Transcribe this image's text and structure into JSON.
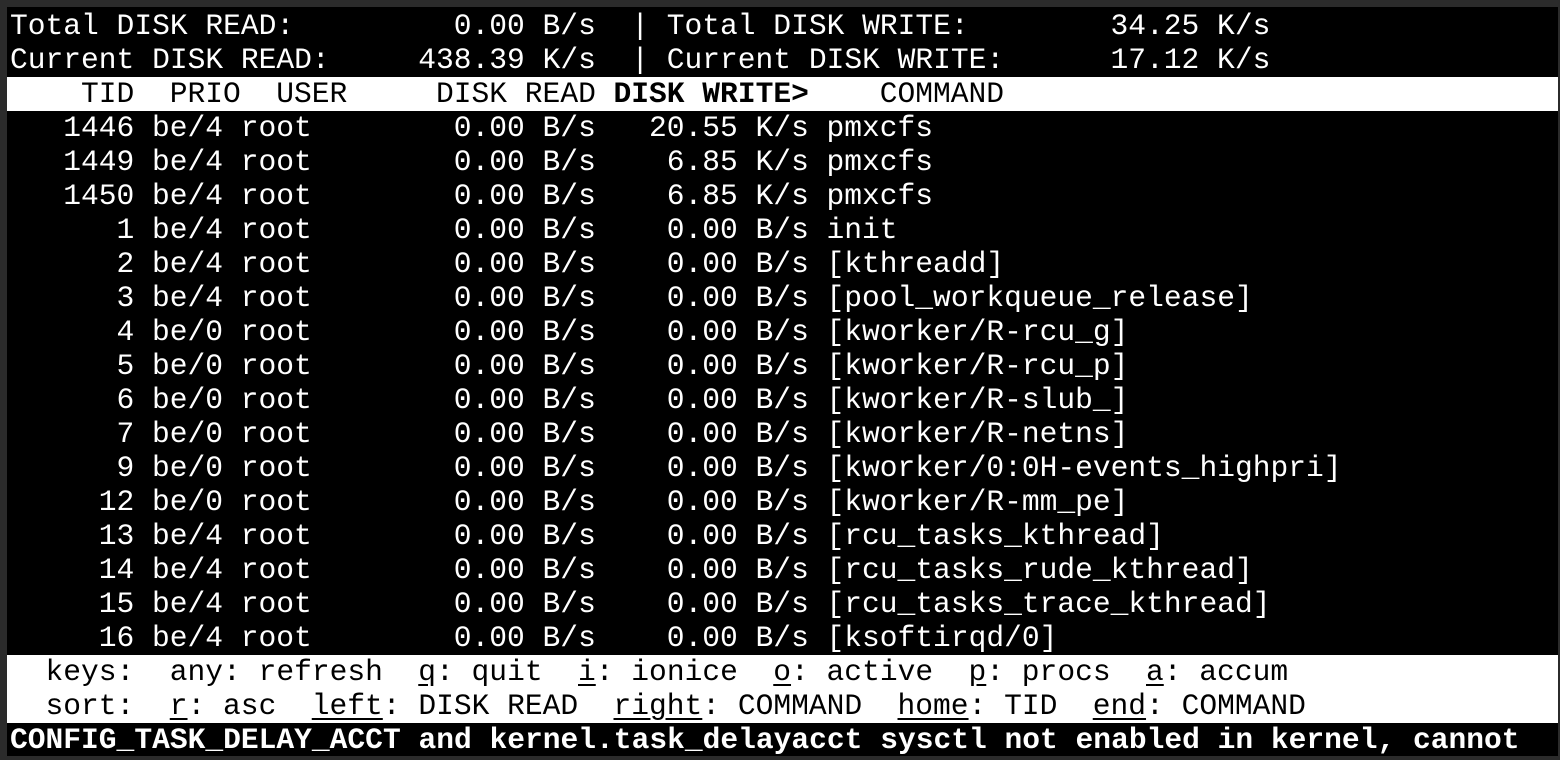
{
  "summary": {
    "total_read_label": "Total DISK READ:",
    "total_read": "0.00 B/s",
    "total_write_label": "Total DISK WRITE:",
    "total_write": "34.25 K/s",
    "current_read_label": "Current DISK READ:",
    "current_read": "438.39 K/s",
    "current_write_label": "Current DISK WRITE:",
    "current_write": "17.12 K/s",
    "separator": "|"
  },
  "columns": [
    "TID",
    "PRIO",
    "USER",
    "DISK READ",
    "DISK WRITE>",
    "COMMAND"
  ],
  "sorted_column": "DISK WRITE>",
  "rows": [
    {
      "tid": "1446",
      "prio": "be/4",
      "user": "root",
      "read": "0.00 B/s",
      "write": "20.55 K/s",
      "command": "pmxcfs"
    },
    {
      "tid": "1449",
      "prio": "be/4",
      "user": "root",
      "read": "0.00 B/s",
      "write": "6.85 K/s",
      "command": "pmxcfs"
    },
    {
      "tid": "1450",
      "prio": "be/4",
      "user": "root",
      "read": "0.00 B/s",
      "write": "6.85 K/s",
      "command": "pmxcfs"
    },
    {
      "tid": "1",
      "prio": "be/4",
      "user": "root",
      "read": "0.00 B/s",
      "write": "0.00 B/s",
      "command": "init"
    },
    {
      "tid": "2",
      "prio": "be/4",
      "user": "root",
      "read": "0.00 B/s",
      "write": "0.00 B/s",
      "command": "[kthreadd]"
    },
    {
      "tid": "3",
      "prio": "be/4",
      "user": "root",
      "read": "0.00 B/s",
      "write": "0.00 B/s",
      "command": "[pool_workqueue_release]"
    },
    {
      "tid": "4",
      "prio": "be/0",
      "user": "root",
      "read": "0.00 B/s",
      "write": "0.00 B/s",
      "command": "[kworker/R-rcu_g]"
    },
    {
      "tid": "5",
      "prio": "be/0",
      "user": "root",
      "read": "0.00 B/s",
      "write": "0.00 B/s",
      "command": "[kworker/R-rcu_p]"
    },
    {
      "tid": "6",
      "prio": "be/0",
      "user": "root",
      "read": "0.00 B/s",
      "write": "0.00 B/s",
      "command": "[kworker/R-slub_]"
    },
    {
      "tid": "7",
      "prio": "be/0",
      "user": "root",
      "read": "0.00 B/s",
      "write": "0.00 B/s",
      "command": "[kworker/R-netns]"
    },
    {
      "tid": "9",
      "prio": "be/0",
      "user": "root",
      "read": "0.00 B/s",
      "write": "0.00 B/s",
      "command": "[kworker/0:0H-events_highpri]"
    },
    {
      "tid": "12",
      "prio": "be/0",
      "user": "root",
      "read": "0.00 B/s",
      "write": "0.00 B/s",
      "command": "[kworker/R-mm_pe]"
    },
    {
      "tid": "13",
      "prio": "be/4",
      "user": "root",
      "read": "0.00 B/s",
      "write": "0.00 B/s",
      "command": "[rcu_tasks_kthread]"
    },
    {
      "tid": "14",
      "prio": "be/4",
      "user": "root",
      "read": "0.00 B/s",
      "write": "0.00 B/s",
      "command": "[rcu_tasks_rude_kthread]"
    },
    {
      "tid": "15",
      "prio": "be/4",
      "user": "root",
      "read": "0.00 B/s",
      "write": "0.00 B/s",
      "command": "[rcu_tasks_trace_kthread]"
    },
    {
      "tid": "16",
      "prio": "be/4",
      "user": "root",
      "read": "0.00 B/s",
      "write": "0.00 B/s",
      "command": "[ksoftirqd/0]"
    }
  ],
  "footer": {
    "keys": {
      "label": "keys:",
      "items": [
        {
          "key": "any",
          "desc": "refresh",
          "underline": false
        },
        {
          "key": "q",
          "desc": "quit",
          "underline": true
        },
        {
          "key": "i",
          "desc": "ionice",
          "underline": true
        },
        {
          "key": "o",
          "desc": "active",
          "underline": true
        },
        {
          "key": "p",
          "desc": "procs",
          "underline": true
        },
        {
          "key": "a",
          "desc": "accum",
          "underline": true
        }
      ]
    },
    "sort": {
      "label": "sort:",
      "items": [
        {
          "key": "r",
          "desc": "asc",
          "underline": true
        },
        {
          "key": "left",
          "desc": "DISK READ",
          "underline": true
        },
        {
          "key": "right",
          "desc": "COMMAND",
          "underline": true
        },
        {
          "key": "home",
          "desc": "TID",
          "underline": true
        },
        {
          "key": "end",
          "desc": "COMMAND",
          "underline": true
        }
      ]
    }
  },
  "warning": "CONFIG_TASK_DELAY_ACCT and kernel.task_delayacct sysctl not enabled in kernel, cannot",
  "colors": {
    "background": "#000000",
    "foreground": "#ffffff",
    "header_bg": "#ffffff",
    "frame": "#2b2b2b"
  }
}
